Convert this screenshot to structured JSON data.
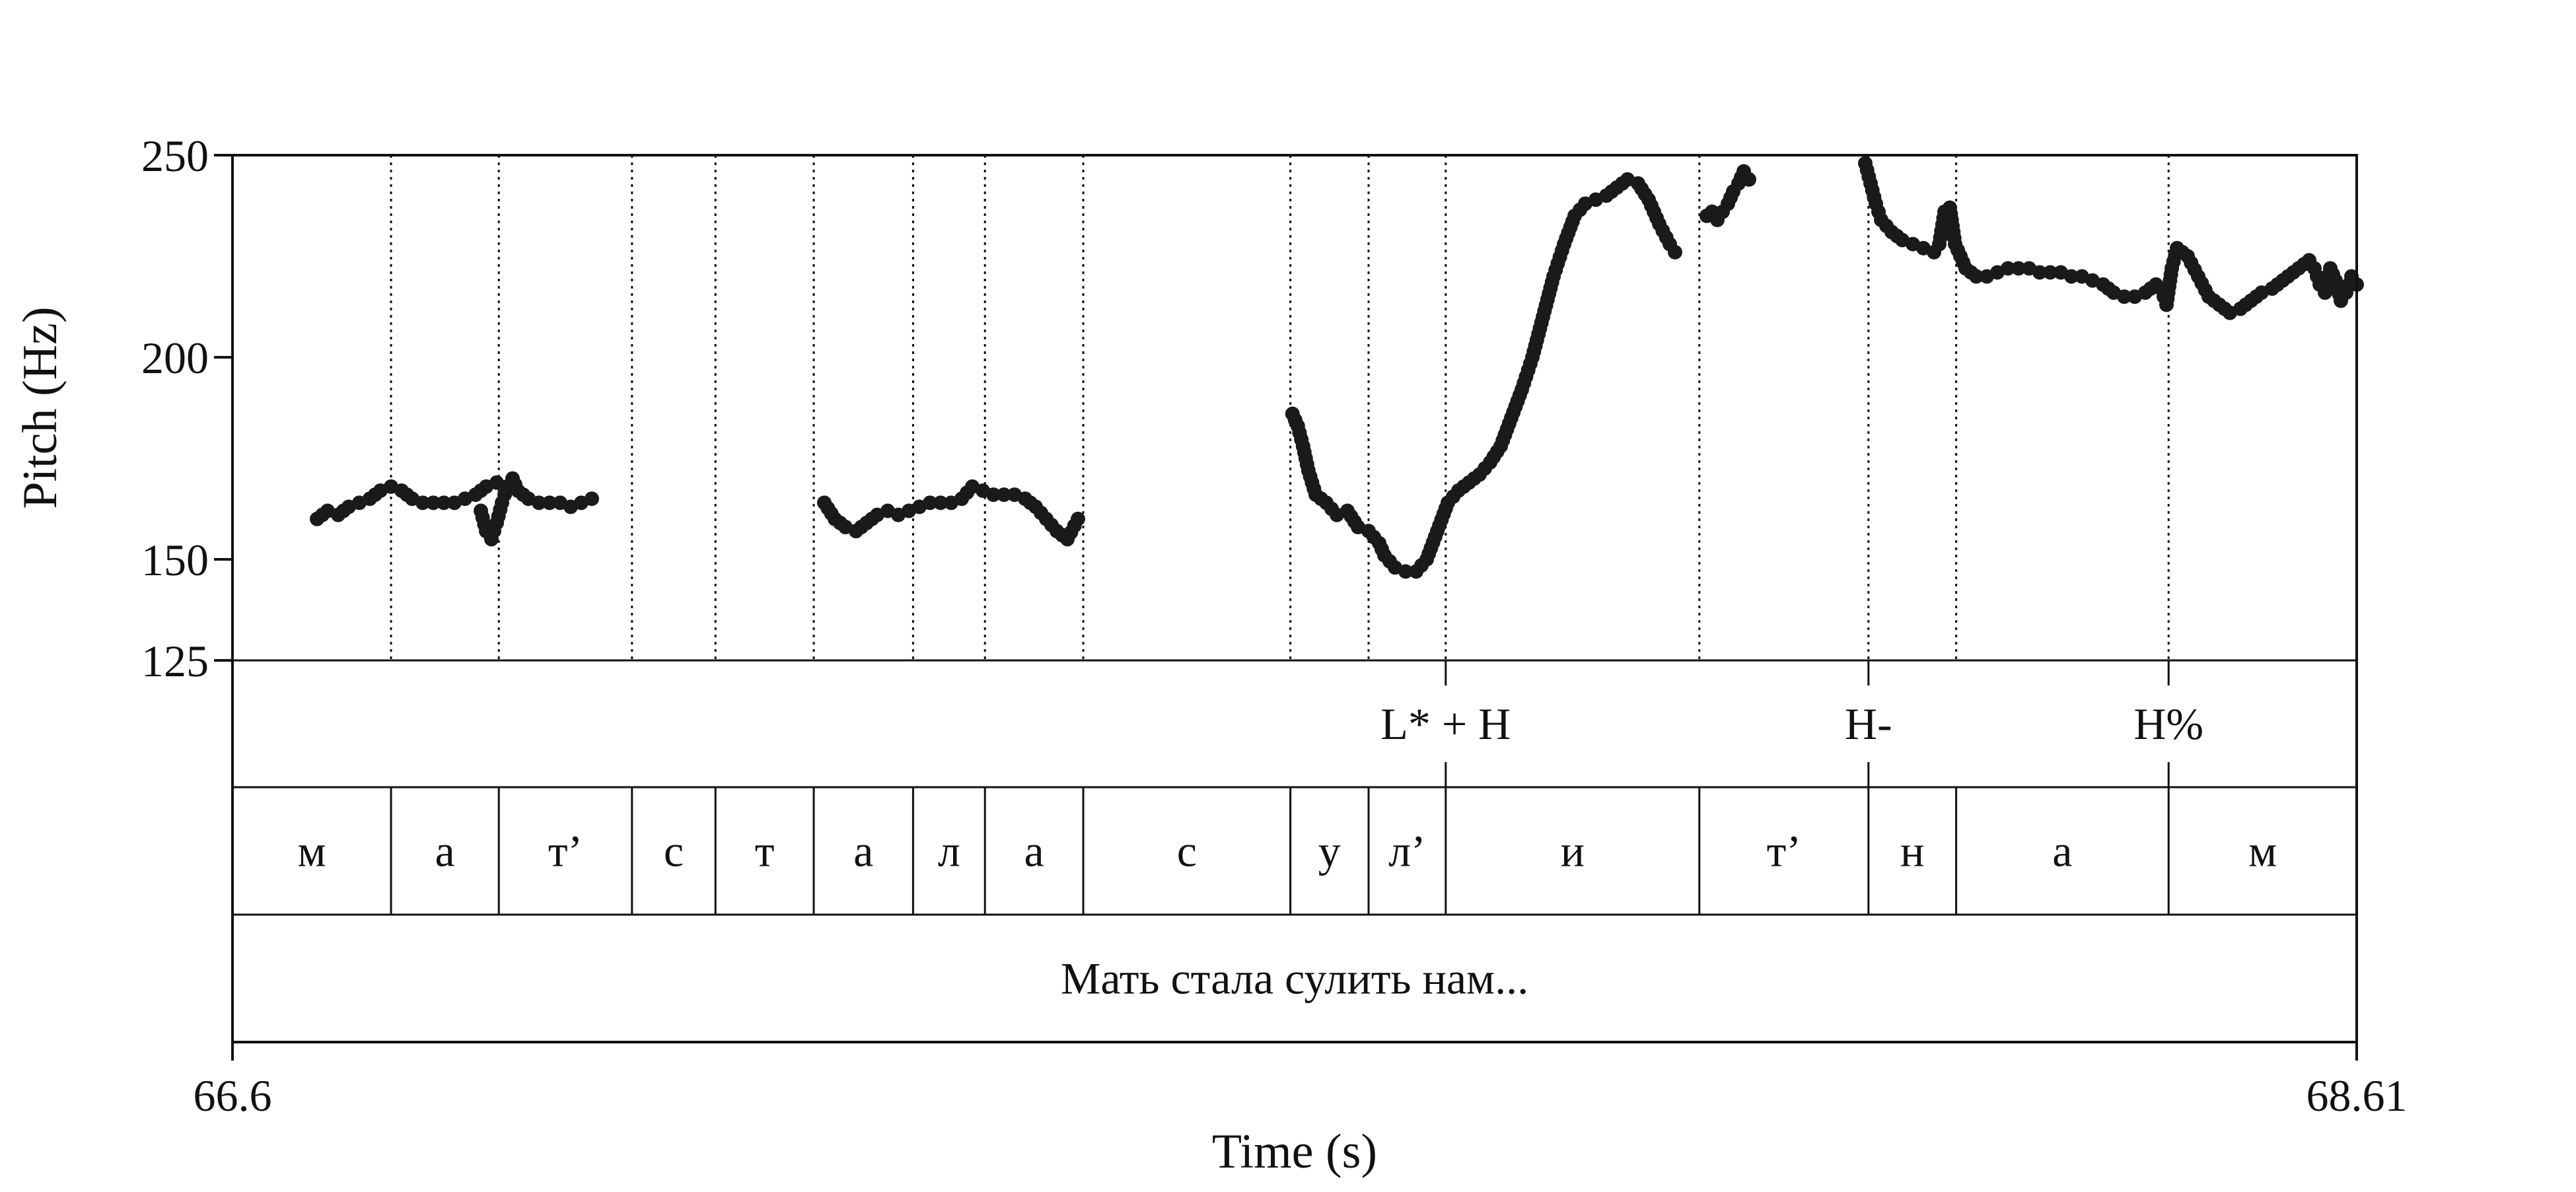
{
  "chart_data": {
    "type": "scatter",
    "xlabel": "Time (s)",
    "ylabel": "Pitch (Hz)",
    "x_range": [
      66.6,
      68.61
    ],
    "y_range": [
      125,
      250
    ],
    "y_ticks": [
      {
        "value": 250,
        "label": "250"
      },
      {
        "value": 200,
        "label": "200"
      },
      {
        "value": 150,
        "label": "150"
      },
      {
        "value": 125,
        "label": "125"
      }
    ],
    "x_ticks": [
      {
        "value": 66.6,
        "label": "66.6"
      },
      {
        "value": 68.61,
        "label": "68.61"
      }
    ],
    "boundaries": [
      66.75,
      66.852,
      66.978,
      67.057,
      67.15,
      67.244,
      67.312,
      67.405,
      67.601,
      67.675,
      67.748,
      67.988,
      68.148,
      68.231,
      68.432
    ],
    "tones": [
      {
        "label": "L* + H",
        "time": 67.748
      },
      {
        "label": "H-",
        "time": 68.148
      },
      {
        "label": "H%",
        "time": 68.432
      }
    ],
    "segments": [
      {
        "label": "м",
        "start": 66.6,
        "end": 66.75
      },
      {
        "label": "а",
        "start": 66.75,
        "end": 66.852
      },
      {
        "label": "т’",
        "start": 66.852,
        "end": 66.978
      },
      {
        "label": "с",
        "start": 66.978,
        "end": 67.057
      },
      {
        "label": "т",
        "start": 67.057,
        "end": 67.15
      },
      {
        "label": "а",
        "start": 67.15,
        "end": 67.244
      },
      {
        "label": "л",
        "start": 67.244,
        "end": 67.312
      },
      {
        "label": "а",
        "start": 67.312,
        "end": 67.405
      },
      {
        "label": "с",
        "start": 67.405,
        "end": 67.601
      },
      {
        "label": "у",
        "start": 67.601,
        "end": 67.675
      },
      {
        "label": "л’",
        "start": 67.675,
        "end": 67.748
      },
      {
        "label": "и",
        "start": 67.748,
        "end": 67.988
      },
      {
        "label": "т’",
        "start": 67.988,
        "end": 68.148
      },
      {
        "label": "н",
        "start": 68.148,
        "end": 68.231
      },
      {
        "label": "а",
        "start": 68.231,
        "end": 68.432
      },
      {
        "label": "м",
        "start": 68.432,
        "end": 68.61
      }
    ],
    "sentence": {
      "label": "Мать стала сулить нам...",
      "start": 66.6,
      "end": 68.61
    },
    "pitch_contours": [
      [
        [
          66.68,
          160
        ],
        [
          66.69,
          162
        ],
        [
          66.7,
          161
        ],
        [
          66.71,
          163
        ],
        [
          66.72,
          164
        ],
        [
          66.73,
          165
        ],
        [
          66.74,
          167
        ],
        [
          66.75,
          168
        ],
        [
          66.76,
          167
        ],
        [
          66.77,
          165
        ],
        [
          66.78,
          164
        ],
        [
          66.79,
          164
        ],
        [
          66.8,
          164
        ],
        [
          66.81,
          164
        ],
        [
          66.82,
          165
        ],
        [
          66.83,
          166
        ],
        [
          66.84,
          168
        ],
        [
          66.85,
          169
        ]
      ],
      [
        [
          66.835,
          162
        ],
        [
          66.84,
          157
        ],
        [
          66.845,
          155
        ],
        [
          66.85,
          159
        ],
        [
          66.855,
          164
        ],
        [
          66.86,
          168
        ],
        [
          66.865,
          170
        ],
        [
          66.87,
          167
        ],
        [
          66.88,
          165
        ],
        [
          66.89,
          164
        ],
        [
          66.9,
          164
        ],
        [
          66.91,
          164
        ],
        [
          66.92,
          163
        ],
        [
          66.93,
          164
        ],
        [
          66.94,
          165
        ]
      ],
      [
        [
          67.16,
          164
        ],
        [
          67.17,
          160
        ],
        [
          67.18,
          158
        ],
        [
          67.19,
          157
        ],
        [
          67.2,
          159
        ],
        [
          67.21,
          161
        ],
        [
          67.22,
          162
        ],
        [
          67.23,
          161
        ],
        [
          67.24,
          162
        ],
        [
          67.25,
          163
        ],
        [
          67.26,
          164
        ],
        [
          67.27,
          164
        ],
        [
          67.28,
          164
        ],
        [
          67.29,
          165
        ],
        [
          67.3,
          168
        ],
        [
          67.31,
          167
        ],
        [
          67.32,
          166
        ],
        [
          67.33,
          166
        ],
        [
          67.34,
          166
        ],
        [
          67.35,
          165
        ],
        [
          67.36,
          163
        ],
        [
          67.37,
          160
        ],
        [
          67.38,
          157
        ],
        [
          67.39,
          155
        ],
        [
          67.4,
          160
        ]
      ],
      [
        [
          67.603,
          186
        ],
        [
          67.608,
          183
        ],
        [
          67.613,
          178
        ],
        [
          67.618,
          172
        ],
        [
          67.625,
          166
        ],
        [
          67.635,
          164
        ],
        [
          67.645,
          161
        ],
        [
          67.655,
          162
        ],
        [
          67.665,
          158
        ],
        [
          67.675,
          157
        ],
        [
          67.685,
          154
        ],
        [
          67.69,
          151
        ],
        [
          67.7,
          148
        ],
        [
          67.71,
          147
        ],
        [
          67.72,
          147
        ],
        [
          67.73,
          150
        ],
        [
          67.74,
          157
        ],
        [
          67.75,
          164
        ],
        [
          67.76,
          167
        ],
        [
          67.77,
          169
        ],
        [
          67.78,
          171
        ],
        [
          67.79,
          174
        ],
        [
          67.8,
          178
        ],
        [
          67.81,
          185
        ],
        [
          67.82,
          192
        ],
        [
          67.83,
          200
        ],
        [
          67.84,
          210
        ],
        [
          67.85,
          220
        ],
        [
          67.86,
          228
        ],
        [
          67.87,
          235
        ],
        [
          67.88,
          238
        ],
        [
          67.89,
          239
        ],
        [
          67.9,
          240
        ],
        [
          67.91,
          242
        ],
        [
          67.92,
          244
        ],
        [
          67.93,
          243
        ],
        [
          67.94,
          239
        ],
        [
          67.95,
          233
        ],
        [
          67.96,
          228
        ],
        [
          67.965,
          226
        ]
      ],
      [
        [
          67.995,
          235
        ],
        [
          68.0,
          236
        ],
        [
          68.005,
          234
        ],
        [
          68.01,
          236
        ],
        [
          68.015,
          238
        ],
        [
          68.02,
          241
        ],
        [
          68.025,
          243
        ],
        [
          68.03,
          246
        ],
        [
          68.035,
          244
        ]
      ],
      [
        [
          68.145,
          248
        ],
        [
          68.15,
          243
        ],
        [
          68.155,
          238
        ],
        [
          68.16,
          234
        ],
        [
          68.17,
          231
        ],
        [
          68.18,
          229
        ],
        [
          68.19,
          228
        ],
        [
          68.2,
          227
        ],
        [
          68.21,
          226
        ],
        [
          68.215,
          228
        ],
        [
          68.22,
          236
        ],
        [
          68.225,
          237
        ],
        [
          68.23,
          228
        ],
        [
          68.24,
          222
        ],
        [
          68.25,
          220
        ],
        [
          68.26,
          220
        ],
        [
          68.27,
          221
        ],
        [
          68.28,
          222
        ],
        [
          68.29,
          222
        ],
        [
          68.3,
          222
        ],
        [
          68.31,
          221
        ],
        [
          68.32,
          221
        ],
        [
          68.33,
          221
        ],
        [
          68.34,
          220
        ],
        [
          68.35,
          220
        ],
        [
          68.36,
          219
        ],
        [
          68.37,
          218
        ],
        [
          68.38,
          216
        ],
        [
          68.39,
          215
        ],
        [
          68.4,
          215
        ],
        [
          68.41,
          216
        ],
        [
          68.42,
          218
        ],
        [
          68.425,
          217
        ],
        [
          68.43,
          213
        ],
        [
          68.435,
          222
        ],
        [
          68.44,
          227
        ],
        [
          68.45,
          225
        ],
        [
          68.46,
          220
        ],
        [
          68.47,
          215
        ],
        [
          68.48,
          213
        ],
        [
          68.49,
          211
        ],
        [
          68.5,
          212
        ],
        [
          68.51,
          214
        ],
        [
          68.52,
          216
        ],
        [
          68.53,
          217
        ],
        [
          68.54,
          219
        ],
        [
          68.55,
          221
        ],
        [
          68.56,
          223
        ],
        [
          68.565,
          224
        ],
        [
          68.57,
          222
        ],
        [
          68.575,
          218
        ],
        [
          68.58,
          216
        ],
        [
          68.585,
          222
        ],
        [
          68.59,
          219
        ],
        [
          68.595,
          214
        ],
        [
          68.6,
          216
        ],
        [
          68.605,
          220
        ],
        [
          68.61,
          218
        ]
      ]
    ]
  }
}
